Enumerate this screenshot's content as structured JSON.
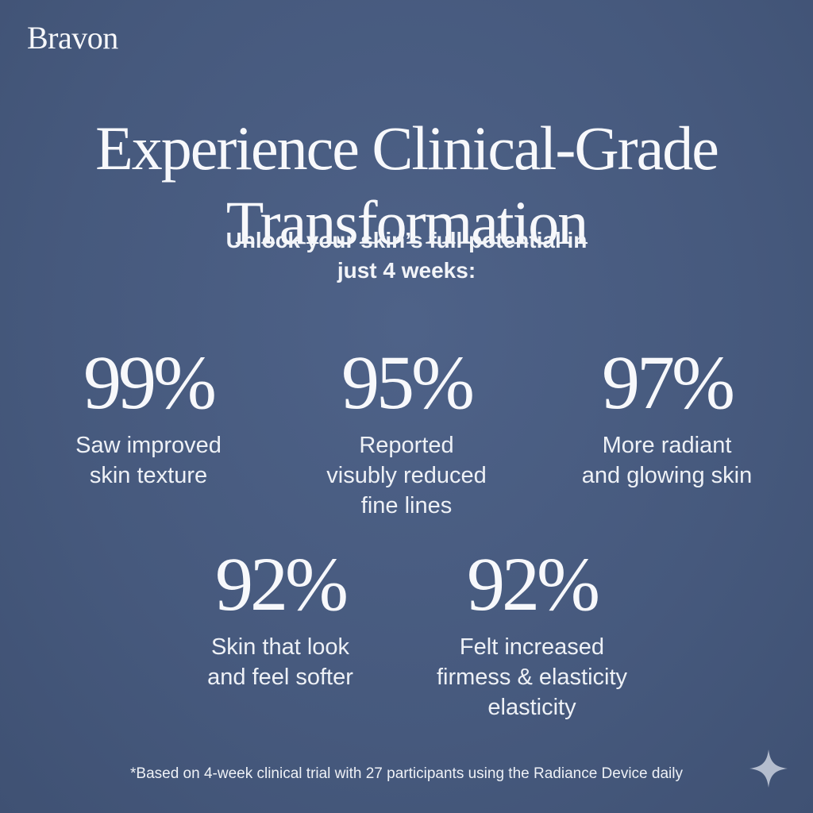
{
  "brand": "Bravon",
  "headline": {
    "line1": "Experience Clinical-Grade",
    "line2": "Transformation"
  },
  "subheading": {
    "line1": "Unlock your skin’s full potential in",
    "line2": "just 4 weeks:"
  },
  "stats": [
    {
      "value": "99%",
      "label": "Saw improved\nskin texture"
    },
    {
      "value": "95%",
      "label": "Reported\nvisubly reduced\nfine lines"
    },
    {
      "value": "97%",
      "label": "More radiant\nand glowing skin"
    },
    {
      "value": "92%",
      "label": "Skin that look\nand feel softer"
    },
    {
      "value": "92%",
      "label": "Felt increased\nfirmess & elasticity\nelasticity"
    }
  ],
  "footnote": "*Based on 4-week clinical trial with 27 participants using the Radiance Device daily",
  "colors": {
    "background": "#46597d",
    "text": "#f4f5f8"
  },
  "icons": {
    "corner": "sparkle-icon"
  }
}
